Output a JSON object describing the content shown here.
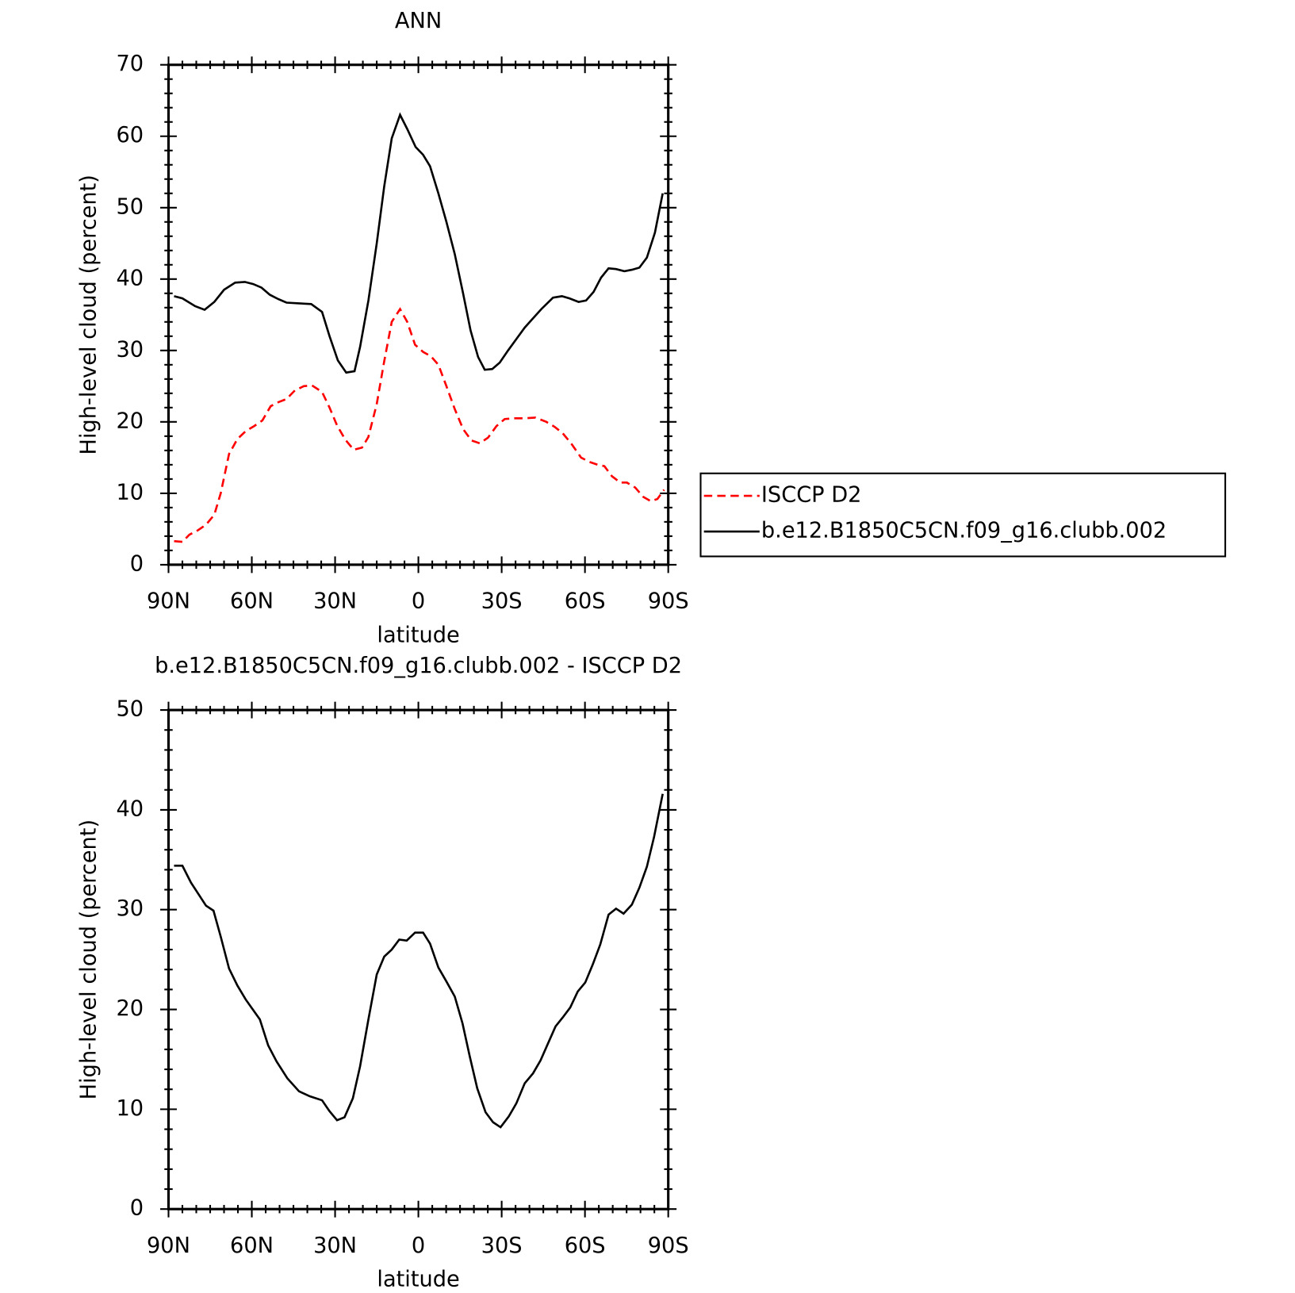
{
  "chart_data": [
    {
      "type": "line",
      "title": "ANN",
      "xlabel": "latitude",
      "ylabel": "High-level cloud (percent)",
      "xlim": [
        90,
        -90
      ],
      "xticks": [
        {
          "value": 90,
          "label": "90N"
        },
        {
          "value": 60,
          "label": "60N"
        },
        {
          "value": 30,
          "label": "30N"
        },
        0,
        {
          "value": -30,
          "label": "30S"
        },
        {
          "value": -60,
          "label": "60S"
        },
        {
          "value": -90,
          "label": "90S"
        }
      ],
      "ylim": [
        0,
        70
      ],
      "yticks": [
        0,
        10,
        20,
        30,
        40,
        50,
        60,
        70
      ],
      "legend": "right",
      "series": [
        {
          "name": "ISCCP D2",
          "color": "#ff0000",
          "linestyle": "dashed",
          "x": [
            88,
            85,
            82.5,
            79.5,
            76.5,
            73.5,
            71.2,
            68.2,
            65.2,
            62.2,
            59.2,
            56.2,
            53.2,
            50.2,
            47.5,
            44.5,
            41.3,
            38.3,
            34.7,
            32,
            29.3,
            26.3,
            23.3,
            20.3,
            18,
            15,
            12.3,
            9.6,
            6.6,
            4,
            1.2,
            -1.7,
            -4.5,
            -7.2,
            -10.1,
            -13.1,
            -16.1,
            -19.1,
            -22.1,
            -25.1,
            -28.1,
            -31.1,
            -34.7,
            -38.3,
            -42.2,
            -46.1,
            -49.1,
            -52,
            -55,
            -58.6,
            -61.6,
            -64.6,
            -67,
            -69.7,
            -72.7,
            -75.1,
            -78.1,
            -81,
            -83.7,
            -86.1,
            -88.5
          ],
          "values": [
            3.3,
            3.2,
            4.2,
            4.8,
            5.6,
            7,
            10,
            15.5,
            17.6,
            18.7,
            19.4,
            20.2,
            22.2,
            22.8,
            23.2,
            24.4,
            25,
            25.1,
            24.2,
            22,
            19.5,
            17.5,
            16.1,
            16.4,
            17.9,
            22.5,
            28.5,
            34,
            35.8,
            34,
            30.8,
            29.8,
            29.2,
            28,
            25,
            21.8,
            19,
            17.4,
            17,
            17.8,
            19.4,
            20.4,
            20.5,
            20.5,
            20.6,
            20,
            19.3,
            18.4,
            17,
            15,
            14.4,
            14,
            13.8,
            12.4,
            11.5,
            11.5,
            10.8,
            9.5,
            8.9,
            9.2,
            10.5
          ]
        },
        {
          "name": "b.e12.B1850C5CN.f09_g16.clubb.002",
          "color": "#000000",
          "linestyle": "solid",
          "x": [
            88,
            85,
            80.4,
            77,
            73.5,
            70,
            66,
            62.5,
            59.5,
            56.5,
            53.5,
            50.5,
            47.5,
            43,
            38.6,
            34.7,
            32,
            29,
            26,
            23,
            21,
            18,
            15,
            12.3,
            9.6,
            6.6,
            4,
            1,
            -1.7,
            -4.2,
            -7.2,
            -10.1,
            -13.1,
            -16.1,
            -18.8,
            -21.5,
            -23.9,
            -26.6,
            -29.3,
            -32.3,
            -35.3,
            -38.3,
            -41.3,
            -44.3,
            -48.5,
            -51.7,
            -54.4,
            -57.7,
            -60.4,
            -63.1,
            -65.8,
            -68.5,
            -71.2,
            -74.2,
            -76.9,
            -79.6,
            -82.3,
            -85.2,
            -88
          ],
          "values": [
            37.6,
            37.3,
            36.2,
            35.7,
            36.8,
            38.5,
            39.5,
            39.6,
            39.3,
            38.8,
            37.8,
            37.2,
            36.7,
            36.6,
            36.5,
            35.4,
            32,
            28.6,
            26.9,
            27.1,
            30.5,
            37,
            45,
            53,
            59.7,
            63,
            61,
            58.5,
            57.4,
            55.8,
            52,
            48,
            43.5,
            38,
            32.8,
            29.1,
            27.3,
            27.4,
            28.3,
            30,
            31.6,
            33.2,
            34.5,
            35.8,
            37.4,
            37.6,
            37.3,
            36.8,
            37,
            38.2,
            40.2,
            41.5,
            41.4,
            41.1,
            41.3,
            41.6,
            43,
            46.5,
            52
          ]
        }
      ]
    },
    {
      "type": "line",
      "title": "b.e12.B1850C5CN.f09_g16.clubb.002 - ISCCP D2",
      "xlabel": "latitude",
      "ylabel": "High-level cloud (percent)",
      "xlim": [
        90,
        -90
      ],
      "xticks": [
        {
          "value": 90,
          "label": "90N"
        },
        {
          "value": 60,
          "label": "60N"
        },
        {
          "value": 30,
          "label": "30N"
        },
        0,
        {
          "value": -30,
          "label": "30S"
        },
        {
          "value": -60,
          "label": "60S"
        },
        {
          "value": -90,
          "label": "90S"
        }
      ],
      "ylim": [
        0,
        50
      ],
      "yticks": [
        0,
        10,
        20,
        30,
        40,
        50
      ],
      "series": [
        {
          "color": "#000000",
          "linestyle": "solid",
          "x": [
            88,
            85,
            81.9,
            76.5,
            73.8,
            71.2,
            68.2,
            65.2,
            62.2,
            57.1,
            54.1,
            51.1,
            47.2,
            43,
            39.1,
            34.7,
            32,
            29.3,
            26.6,
            23.6,
            21,
            18,
            15,
            12.3,
            9.6,
            6.9,
            4.2,
            1.2,
            -1.7,
            -4.2,
            -7.2,
            -10.1,
            -13.1,
            -15.9,
            -18.5,
            -21.2,
            -24.2,
            -26.9,
            -29.6,
            -32.6,
            -35.3,
            -38.3,
            -41.3,
            -44,
            -46.7,
            -49.4,
            -52,
            -54.7,
            -57.4,
            -60.1,
            -62.8,
            -65.5,
            -68.5,
            -71.2,
            -73.9,
            -76.9,
            -79.6,
            -82.3,
            -84.9,
            -88
          ],
          "values": [
            34.4,
            34.4,
            32.7,
            30.4,
            29.9,
            27.3,
            24.1,
            22.4,
            21,
            19,
            16.4,
            14.8,
            13.1,
            11.8,
            11.3,
            10.9,
            9.8,
            8.9,
            9.2,
            11.1,
            14.3,
            19,
            23.5,
            25.3,
            26,
            27,
            26.9,
            27.7,
            27.7,
            26.6,
            24.2,
            22.8,
            21.3,
            18.6,
            15.3,
            12.1,
            9.7,
            8.7,
            8.2,
            9.3,
            10.6,
            12.6,
            13.6,
            14.9,
            16.6,
            18.3,
            19.2,
            20.2,
            21.8,
            22.7,
            24.5,
            26.5,
            29.5,
            30.1,
            29.6,
            30.5,
            32.2,
            34.3,
            37.3,
            41.6
          ]
        }
      ]
    }
  ]
}
